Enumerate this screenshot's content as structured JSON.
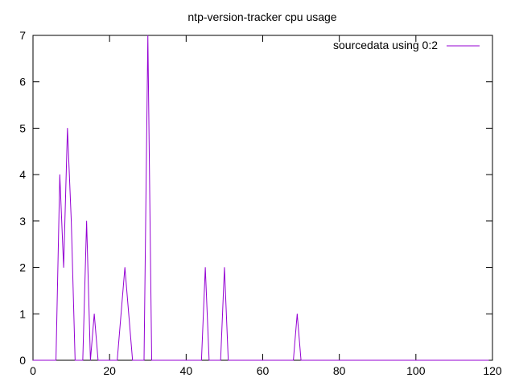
{
  "chart_data": {
    "type": "line",
    "title": "ntp-version-tracker cpu usage",
    "xlabel": "",
    "ylabel": "",
    "xlim": [
      0,
      120
    ],
    "ylim": [
      0,
      7
    ],
    "xticks": [
      0,
      20,
      40,
      60,
      80,
      100,
      120
    ],
    "yticks": [
      0,
      1,
      2,
      3,
      4,
      5,
      6,
      7
    ],
    "grid": false,
    "legend": "top-right",
    "colors": {
      "series": "#9400d3",
      "axes": "#000000"
    },
    "series": [
      {
        "name": "sourcedata using 0:2",
        "x": [
          0,
          1,
          2,
          3,
          4,
          5,
          6,
          7,
          8,
          9,
          10,
          11,
          12,
          13,
          14,
          15,
          16,
          17,
          18,
          19,
          20,
          21,
          22,
          23,
          24,
          25,
          26,
          27,
          28,
          29,
          30,
          31,
          32,
          33,
          34,
          35,
          36,
          37,
          38,
          39,
          40,
          41,
          42,
          43,
          44,
          45,
          46,
          47,
          48,
          49,
          50,
          51,
          52,
          53,
          54,
          55,
          56,
          57,
          58,
          59,
          60,
          61,
          62,
          63,
          64,
          65,
          66,
          67,
          68,
          69,
          70,
          71,
          72,
          73,
          74,
          75,
          76,
          77,
          78,
          79,
          80,
          81,
          82,
          83,
          84,
          85,
          86,
          87,
          88,
          89,
          90,
          91,
          92,
          93,
          94,
          95,
          96,
          97,
          98,
          99,
          100,
          101,
          102,
          103,
          104,
          105,
          106,
          107,
          108,
          109,
          110,
          111,
          112,
          113,
          114,
          115,
          116,
          117,
          118,
          119
        ],
        "y": [
          0,
          0,
          0,
          0,
          0,
          0,
          0,
          4,
          2,
          5,
          3,
          0,
          0,
          0,
          3,
          0,
          1,
          0,
          0,
          0,
          0,
          0,
          0,
          1,
          2,
          1,
          0,
          0,
          0,
          0,
          7,
          0,
          0,
          0,
          0,
          0,
          0,
          0,
          0,
          0,
          0,
          0,
          0,
          0,
          0,
          2,
          0,
          0,
          0,
          0,
          2,
          0,
          0,
          0,
          0,
          0,
          0,
          0,
          0,
          0,
          0,
          0,
          0,
          0,
          0,
          0,
          0,
          0,
          0,
          1,
          0,
          0,
          0,
          0,
          0,
          0,
          0,
          0,
          0,
          0,
          0,
          0,
          0,
          0,
          0,
          0,
          0,
          0,
          0,
          0,
          0,
          0,
          0,
          0,
          0,
          0,
          0,
          0,
          0,
          0,
          0,
          0,
          0,
          0,
          0,
          0,
          0,
          0,
          0,
          0,
          0,
          0,
          0,
          0,
          0,
          0,
          0,
          0,
          0,
          0
        ]
      }
    ]
  }
}
